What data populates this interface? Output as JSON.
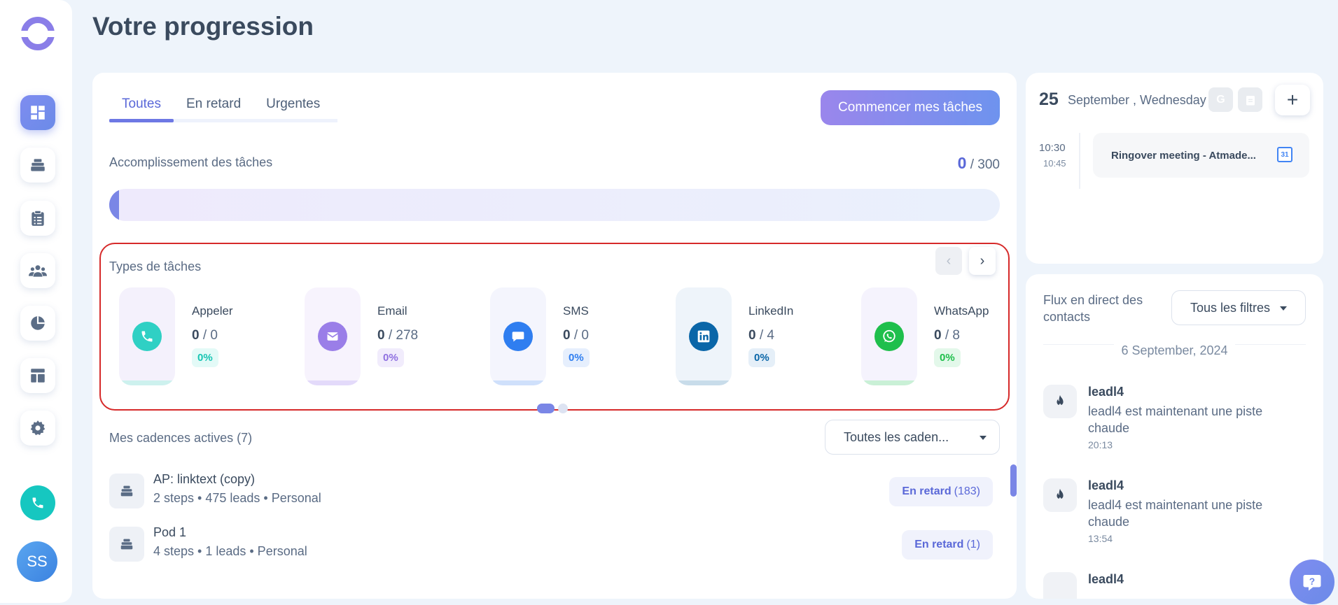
{
  "page": {
    "title": "Votre progression"
  },
  "tabs": [
    {
      "label": "Toutes"
    },
    {
      "label": "En retard"
    },
    {
      "label": "Urgentes"
    }
  ],
  "start_button": "Commencer mes tâches",
  "accomplishment": {
    "label": "Accomplissement des tâches",
    "done": "0",
    "total": "/ 300",
    "progress_fraction": 0.0
  },
  "task_types": {
    "label": "Types de tâches",
    "items": [
      {
        "name": "Appeler",
        "done": "0",
        "total": "/ 0",
        "percent": "0%",
        "icon": "phone-icon",
        "color": "#2fd0c4",
        "tint": "#f4f1fc",
        "bar": "#cdf1ee",
        "pct_bg": "#e3faf7",
        "pct_color": "#17c5b3"
      },
      {
        "name": "Email",
        "done": "0",
        "total": "/ 278",
        "percent": "0%",
        "icon": "mail-icon",
        "color": "#9a7ee8",
        "tint": "#f7f3fd",
        "bar": "#e3dafa",
        "pct_bg": "#f1ecfc",
        "pct_color": "#8f70e0"
      },
      {
        "name": "SMS",
        "done": "0",
        "total": "/ 0",
        "percent": "0%",
        "icon": "chat-icon",
        "color": "#2f7ef0",
        "tint": "#f4f5fd",
        "bar": "#cfe0fb",
        "pct_bg": "#e6effd",
        "pct_color": "#2f7ef0"
      },
      {
        "name": "LinkedIn",
        "done": "0",
        "total": "/ 4",
        "percent": "0%",
        "icon": "linkedin-icon",
        "color": "#0a66a8",
        "tint": "#eef4fa",
        "bar": "#c8dcea",
        "pct_bg": "#e5eff8",
        "pct_color": "#0a66a8"
      },
      {
        "name": "WhatsApp",
        "done": "0",
        "total": "/ 8",
        "percent": "0%",
        "icon": "whatsapp-icon",
        "color": "#1fbf4c",
        "tint": "#f5f3fd",
        "bar": "#c9f0d6",
        "pct_bg": "#e3f8ea",
        "pct_color": "#1fbf4c"
      }
    ]
  },
  "cadences": {
    "label": "Mes cadences actives (7)",
    "filter": "Toutes les caden...",
    "rows": [
      {
        "title": "AP: linktext (copy)",
        "subtitle": "2 steps • 475 leads • Personal",
        "status": "En retard",
        "count": "(183)"
      },
      {
        "title": "Pod 1",
        "subtitle": "4 steps • 1 leads • Personal",
        "status": "En retard",
        "count": "(1)"
      }
    ]
  },
  "agenda": {
    "day": "25",
    "date_text": "September , Wednesday",
    "event": {
      "start": "10:30",
      "end": "10:45",
      "title": "Ringover meeting - Atmade..."
    }
  },
  "feed": {
    "label": "Flux en direct des contacts",
    "filter": "Tous les filtres",
    "date": "6 September, 2024",
    "items": [
      {
        "name": "leadl4",
        "text": "leadl4 est maintenant une piste chaude",
        "time": "20:13"
      },
      {
        "name": "leadl4",
        "text": "leadl4 est maintenant une piste chaude",
        "time": "13:54"
      },
      {
        "name": "leadl4",
        "text": "",
        "time": ""
      }
    ]
  },
  "user": {
    "initials": "SS"
  }
}
